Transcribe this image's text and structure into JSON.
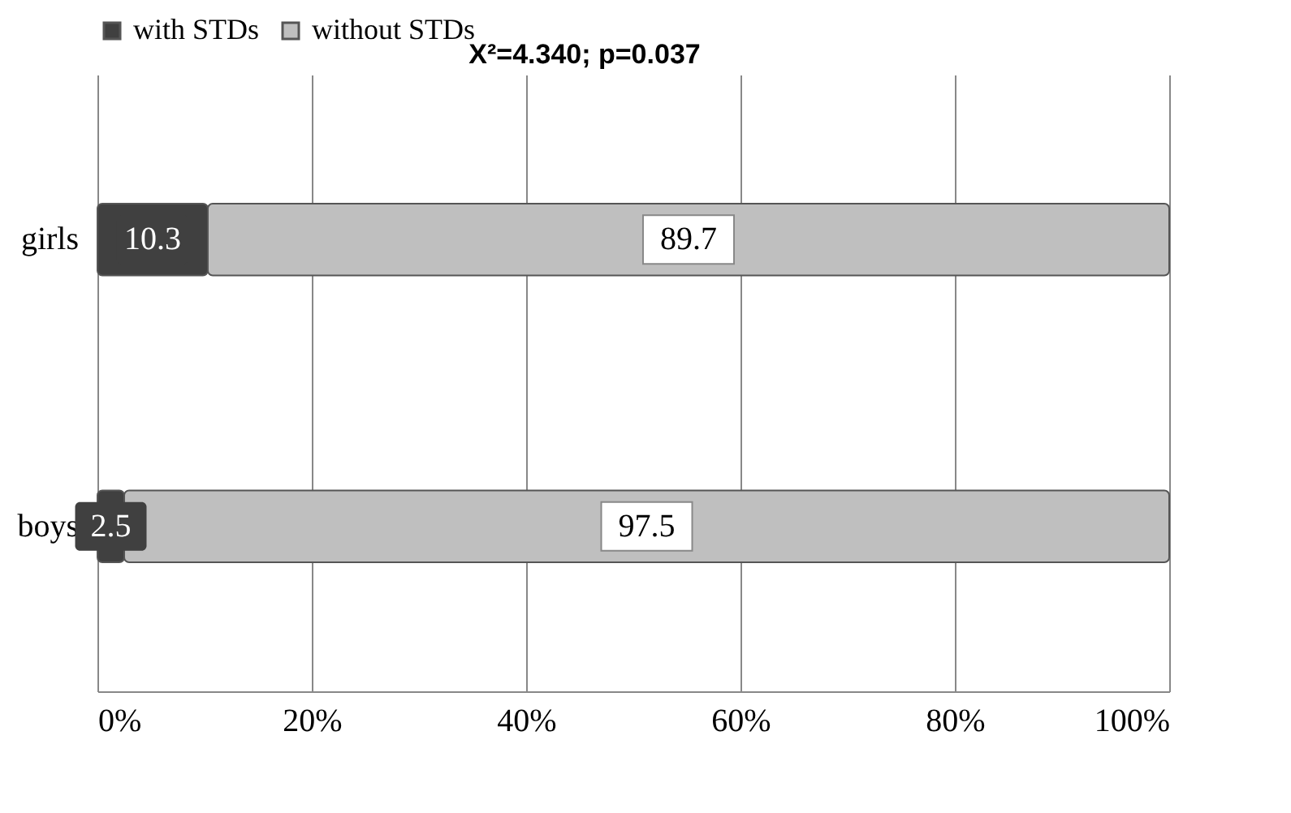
{
  "chart_data": {
    "type": "bar",
    "orientation": "horizontal",
    "stacked": true,
    "categories": [
      "girls",
      "boys"
    ],
    "series": [
      {
        "name": "with STDs",
        "color": "#404040",
        "values": [
          10.3,
          2.5
        ]
      },
      {
        "name": "without STDs",
        "color": "#bfbfbf",
        "values": [
          89.7,
          97.5
        ]
      }
    ],
    "xlim": [
      0,
      100
    ],
    "xticks": [
      {
        "value": 0,
        "label": "0%"
      },
      {
        "value": 20,
        "label": "20%"
      },
      {
        "value": 40,
        "label": "40%"
      },
      {
        "value": 60,
        "label": "60%"
      },
      {
        "value": 80,
        "label": "80%"
      },
      {
        "value": 100,
        "label": "100%"
      }
    ],
    "annotations": [
      "X²=4.340; p=0.037"
    ],
    "data_labels": true,
    "grid": "x",
    "legend": "top"
  }
}
